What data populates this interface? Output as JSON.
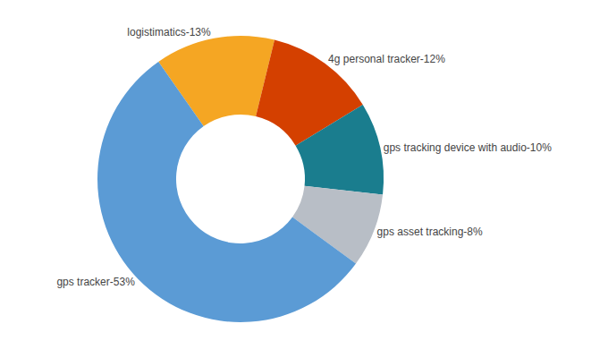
{
  "chart_data": {
    "type": "pie",
    "categories": [
      "logistimatics",
      "4g personal tracker",
      "gps tracking device with audio",
      "gps asset tracking",
      "gps tracker"
    ],
    "values": [
      13,
      12,
      10,
      8,
      53
    ],
    "value_labels": [
      "logistimatics-13%",
      "4g personal tracker-12%",
      "gps tracking device with audio-10%",
      "gps asset tracking-8%",
      "gps tracker-53%"
    ],
    "colors": [
      "#F5A623",
      "#D44000",
      "#1A7D8E",
      "#B8BEC6",
      "#5B9BD5"
    ],
    "data_labels": true,
    "legend": false
  }
}
